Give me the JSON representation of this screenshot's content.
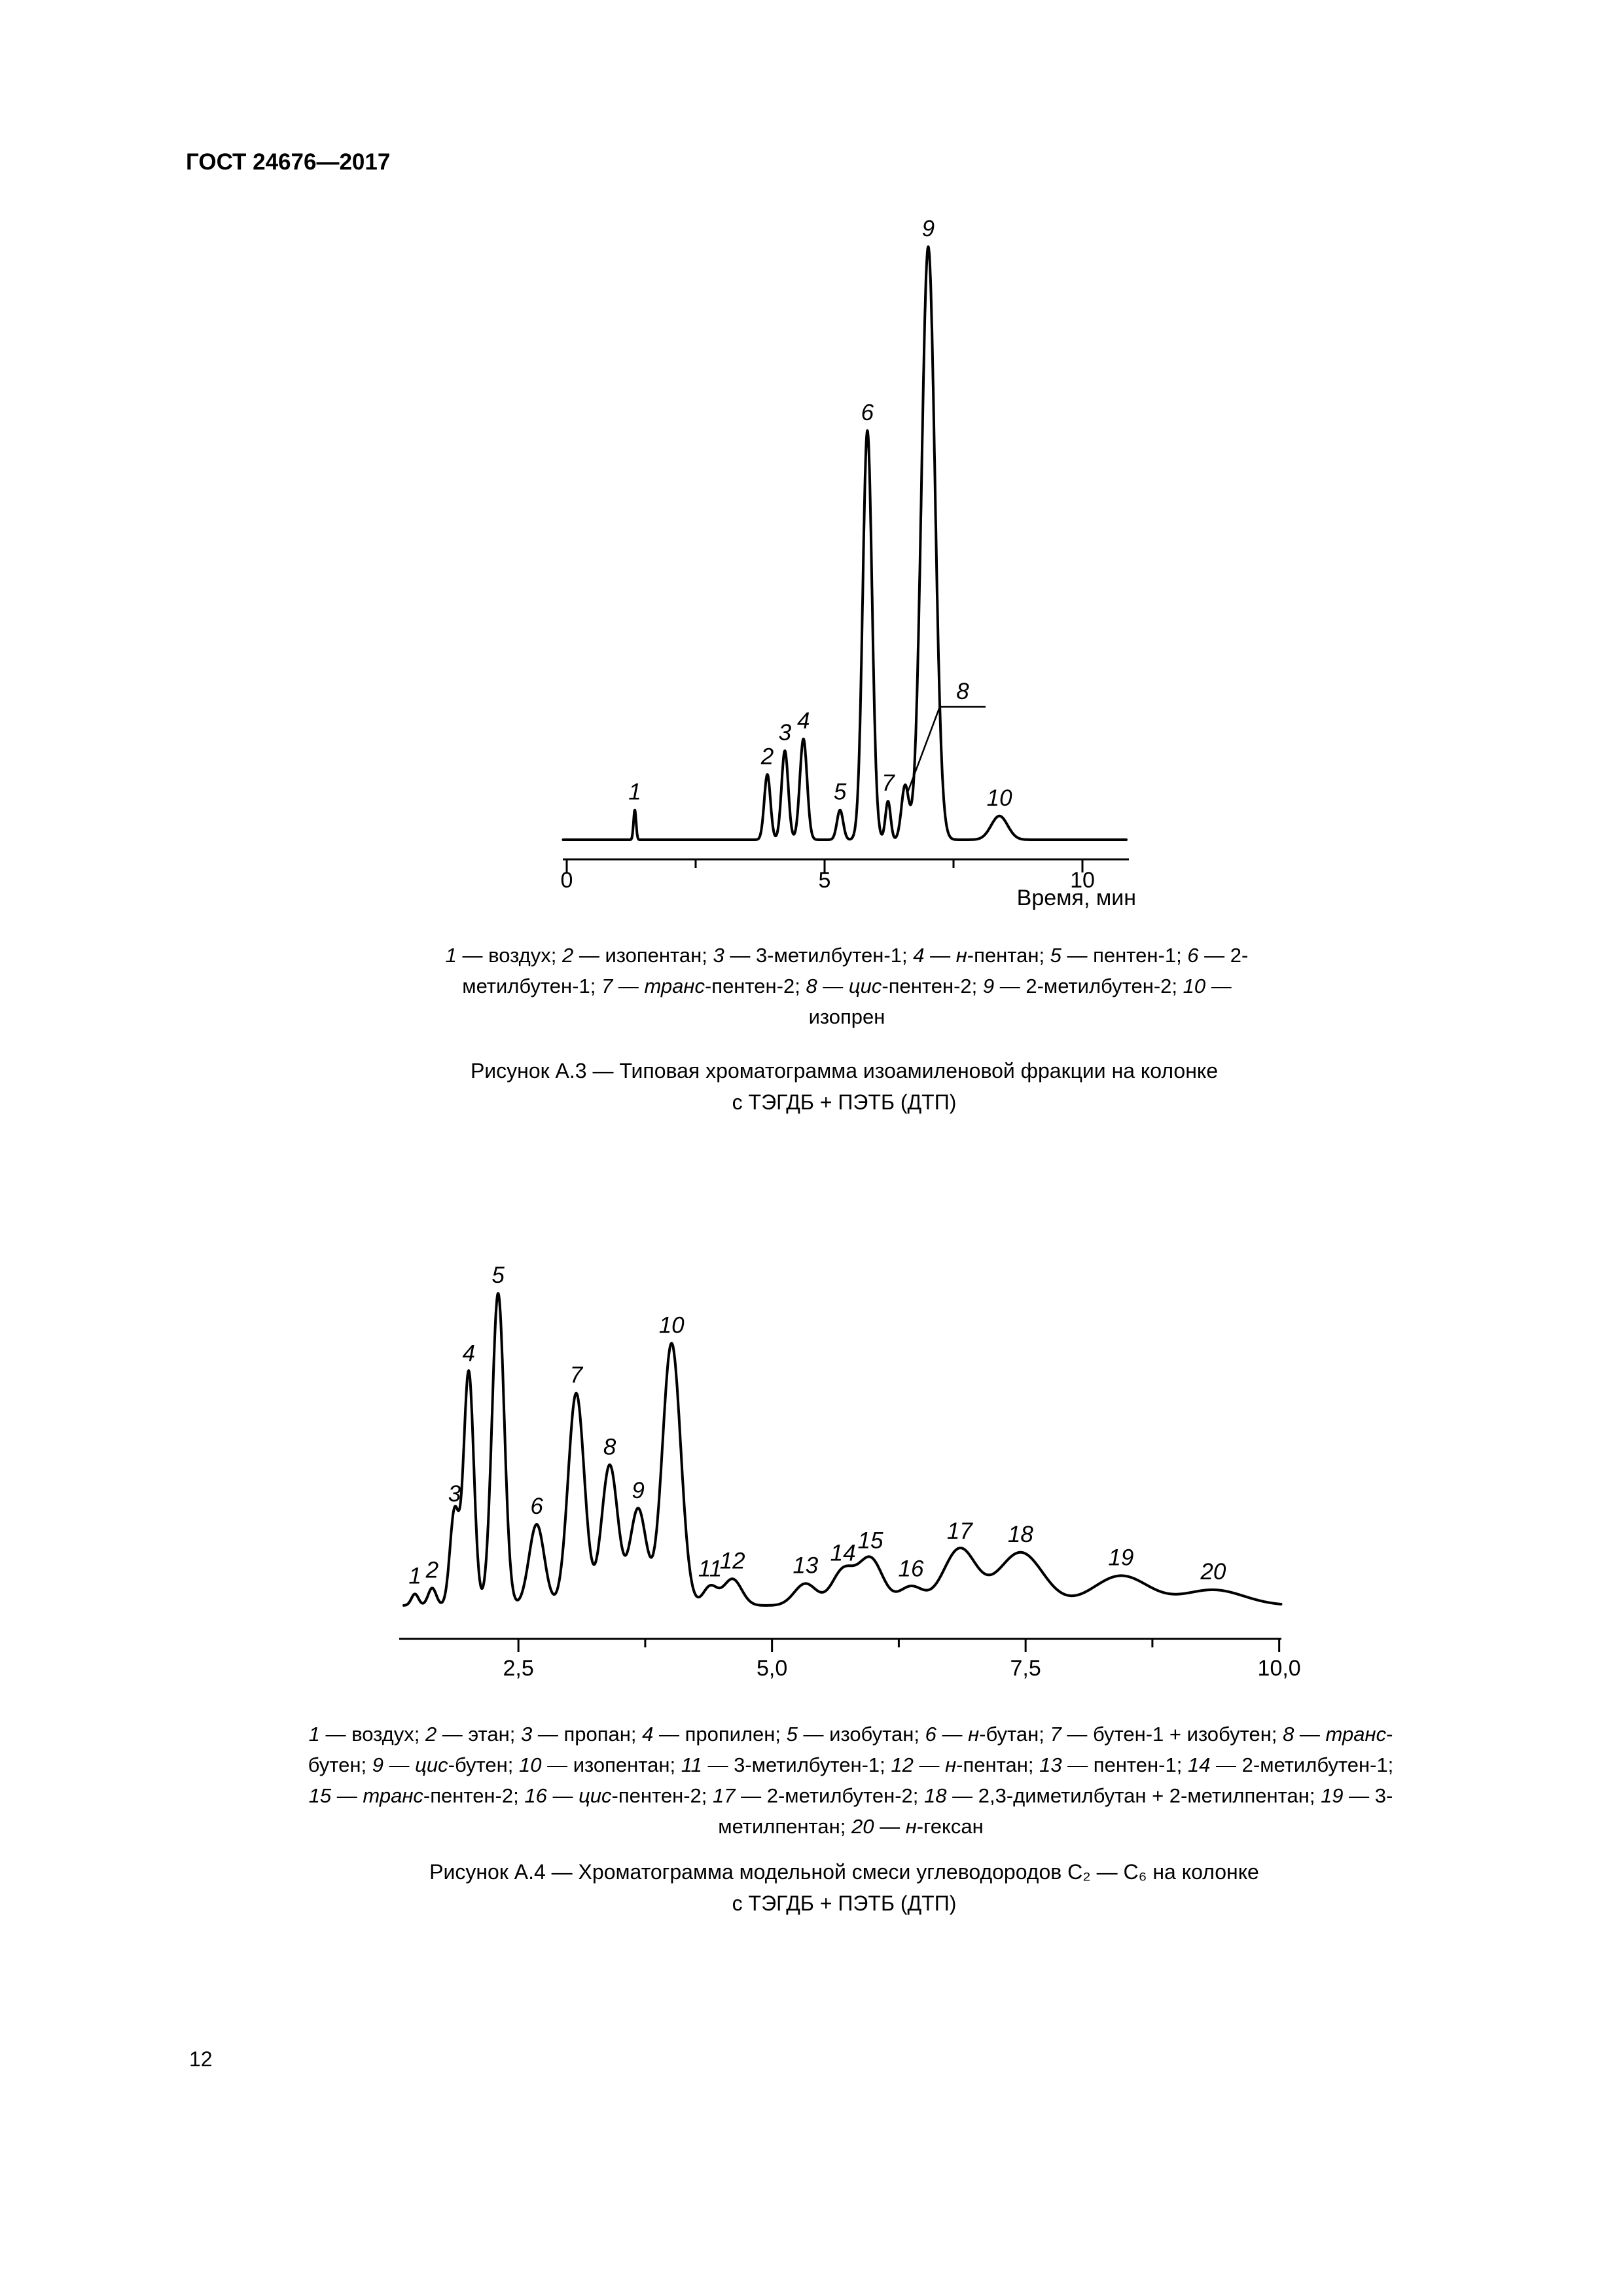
{
  "page": {
    "header": "ГОСТ 24676—2017",
    "page_number": "12"
  },
  "figures": [
    {
      "caption_line1": "Рисунок А.3 — Типовая хроматограмма изоамиленовой фракции на колонке",
      "caption_line2": "с ТЭГДБ + ПЭТБ (ДТП)"
    },
    {
      "caption_line1": "Рисунок А.4 — Хроматограмма модельной смеси углеводородов С₂ — С₆ на колонке",
      "caption_line2": "с ТЭГДБ + ПЭТБ (ДТП)"
    }
  ],
  "chart_data": [
    {
      "type": "line",
      "title": "Типовая хроматограмма изоамиленовой фракции на колонке с ТЭГДБ + ПЭТБ (ДТП)",
      "xlabel": "Время, мин",
      "ylabel": "",
      "x_range": [
        0,
        10.9
      ],
      "x_ticks": [
        {
          "t": 0,
          "label": "0"
        },
        {
          "t": 2.5
        },
        {
          "t": 5,
          "label": "5"
        },
        {
          "t": 7.5
        },
        {
          "t": 10,
          "label": "10"
        }
      ],
      "y_unit": "relative detector response, max peak = 100",
      "peaks": [
        {
          "n": "1",
          "name": "воздух",
          "t": 1.32,
          "h": 5,
          "w": 0.025
        },
        {
          "n": "2",
          "name": "изопентан",
          "t": 3.89,
          "h": 11,
          "w": 0.06
        },
        {
          "n": "3",
          "name": "3-метилбутен-1",
          "t": 4.23,
          "h": 15,
          "w": 0.065
        },
        {
          "n": "4",
          "name": "н-пентан",
          "t": 4.59,
          "h": 17,
          "w": 0.07
        },
        {
          "n": "5",
          "name": "пентен-1",
          "t": 5.3,
          "h": 5,
          "w": 0.06
        },
        {
          "n": "6",
          "name": "2-метилбутен-1",
          "t": 5.83,
          "h": 69,
          "w": 0.09
        },
        {
          "n": "7",
          "name": "транс-пентен-2",
          "t": 6.23,
          "h": 6.5,
          "w": 0.05
        },
        {
          "n": "8",
          "name": "цис-пентен-2",
          "t": 6.56,
          "h": 9,
          "w": 0.07
        },
        {
          "n": "9",
          "name": "2-метилбутен-2",
          "t": 7.01,
          "h": 100,
          "w": 0.13
        },
        {
          "n": "10",
          "name": "изопрен",
          "t": 8.39,
          "h": 4,
          "w": 0.16
        }
      ]
    },
    {
      "type": "line",
      "title": "Хроматограмма модельной смеси углеводородов С₂ — С₆ на колонке с ТЭГДБ + ПЭТБ (ДТП)",
      "xlabel": "",
      "ylabel": "",
      "x_range": [
        1.37,
        10.05
      ],
      "x_ticks": [
        {
          "t": 2.5,
          "label": "2,5"
        },
        {
          "t": 3.75
        },
        {
          "t": 5,
          "label": "5,0"
        },
        {
          "t": 6.25
        },
        {
          "t": 7.5,
          "label": "7,5"
        },
        {
          "t": 8.75
        },
        {
          "t": 10,
          "label": "10,0"
        }
      ],
      "y_unit": "relative detector response, max peak = 100",
      "peaks": [
        {
          "n": "1",
          "name": "воздух",
          "t": 1.48,
          "h": 3.7,
          "w": 0.035
        },
        {
          "n": "2",
          "name": "этан",
          "t": 1.65,
          "h": 5.6,
          "w": 0.04
        },
        {
          "n": "3",
          "name": "пропан",
          "t": 1.87,
          "h": 30,
          "w": 0.045
        },
        {
          "n": "4",
          "name": "пропилен",
          "t": 2.01,
          "h": 75,
          "w": 0.05
        },
        {
          "n": "5",
          "name": "изобутан",
          "t": 2.3,
          "h": 100,
          "w": 0.06
        },
        {
          "n": "6",
          "name": "н-бутан",
          "t": 2.68,
          "h": 26,
          "w": 0.075
        },
        {
          "n": "7",
          "name": "бутен-1 + изобутен",
          "t": 3.07,
          "h": 68,
          "w": 0.08
        },
        {
          "n": "8",
          "name": "транс-бутен",
          "t": 3.4,
          "h": 45,
          "w": 0.08
        },
        {
          "n": "9",
          "name": "цис-бутен",
          "t": 3.68,
          "h": 31,
          "w": 0.08
        },
        {
          "n": "10",
          "name": "изопентан",
          "t": 4.01,
          "h": 84,
          "w": 0.09
        },
        {
          "n": "11",
          "name": "3-метилбутен-1",
          "t": 4.39,
          "h": 6,
          "w": 0.07
        },
        {
          "n": "12",
          "name": "н-пентан",
          "t": 4.61,
          "h": 8.5,
          "w": 0.09
        },
        {
          "n": "13",
          "name": "пентен-1",
          "t": 5.33,
          "h": 7,
          "w": 0.11
        },
        {
          "n": "14",
          "name": "2-метилбутен-1",
          "t": 5.7,
          "h": 11,
          "w": 0.11
        },
        {
          "n": "15",
          "name": "транс-пентен-2",
          "t": 5.97,
          "h": 15,
          "w": 0.12
        },
        {
          "n": "16",
          "name": "цис-пентен-2",
          "t": 6.37,
          "h": 6,
          "w": 0.12
        },
        {
          "n": "17",
          "name": "2-метилбутен-2",
          "t": 6.85,
          "h": 18,
          "w": 0.16
        },
        {
          "n": "18",
          "name": "2,3-диметилбутан + 2-метилпентан",
          "t": 7.45,
          "h": 17,
          "w": 0.22
        },
        {
          "n": "19",
          "name": "3-метилпентан",
          "t": 8.44,
          "h": 9.5,
          "w": 0.27
        },
        {
          "n": "20",
          "name": "н-гексан",
          "t": 9.35,
          "h": 5,
          "w": 0.3
        }
      ]
    }
  ]
}
